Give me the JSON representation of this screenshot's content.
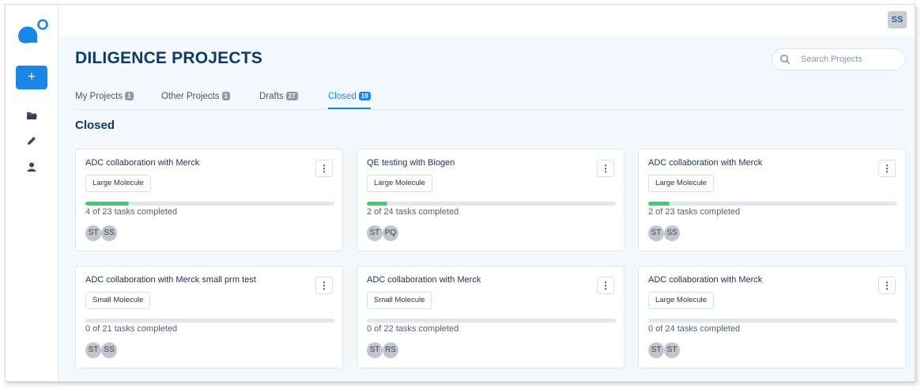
{
  "user": {
    "initials": "SS"
  },
  "sidebar": {
    "add_label": "+"
  },
  "page": {
    "title": "DILIGENCE PROJECTS"
  },
  "search": {
    "placeholder": "Search Projects"
  },
  "tabs": [
    {
      "label": "My Projects",
      "count": "1"
    },
    {
      "label": "Other Projects",
      "count": "1"
    },
    {
      "label": "Drafts",
      "count": "27"
    },
    {
      "label": "Closed",
      "count": "19"
    }
  ],
  "active_tab": "Closed",
  "section": {
    "title": "Closed"
  },
  "colors": {
    "accent": "#1a86e6",
    "title": "#0f3a63",
    "progress": "#3ccf6d"
  },
  "cards": [
    {
      "title": "ADC collaboration with Merck",
      "tag": "Large Molecule",
      "progress_text": "4 of 23 tasks completed",
      "progress": 0.174,
      "members": [
        "ST",
        "SS"
      ]
    },
    {
      "title": "QE testing with Biogen",
      "tag": "Large Molecule",
      "progress_text": "2 of 24 tasks completed",
      "progress": 0.083,
      "members": [
        "ST",
        "PQ"
      ]
    },
    {
      "title": "ADC collaboration with Merck",
      "tag": "Large Molecule",
      "progress_text": "2 of 23 tasks completed",
      "progress": 0.087,
      "members": [
        "ST",
        "SS"
      ]
    },
    {
      "title": "ADC collaboration with Merck small prm test",
      "tag": "Small Molecule",
      "progress_text": "0 of 21 tasks completed",
      "progress": 0,
      "members": [
        "ST",
        "SS"
      ]
    },
    {
      "title": "ADC collaboration with Merck",
      "tag": "Small Molecule",
      "progress_text": "0 of 22 tasks completed",
      "progress": 0,
      "members": [
        "ST",
        "RS"
      ]
    },
    {
      "title": "ADC collaboration with Merck",
      "tag": "Large Molecule",
      "progress_text": "0 of 24 tasks completed",
      "progress": 0,
      "members": [
        "ST",
        "ST"
      ]
    }
  ]
}
